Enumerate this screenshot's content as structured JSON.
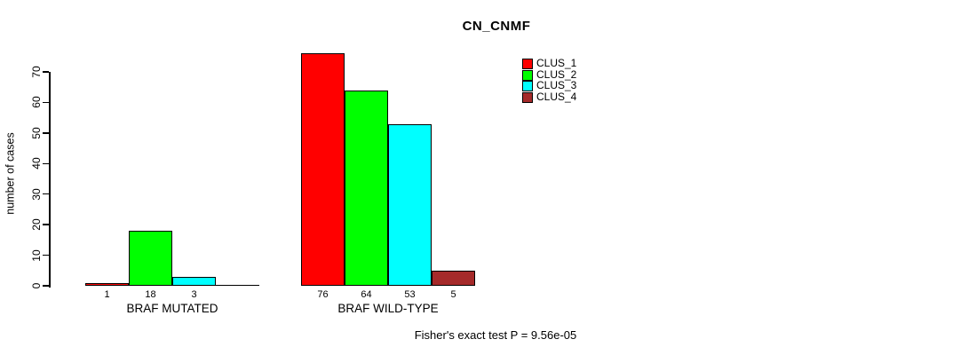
{
  "chart_data": {
    "type": "bar",
    "title": "CN_CNMF",
    "xlabel": "",
    "ylabel": "number of cases",
    "categories": [
      "BRAF MUTATED",
      "BRAF WILD-TYPE"
    ],
    "series": [
      {
        "name": "CLUS_1",
        "color": "#ff0000",
        "values": [
          1,
          76
        ]
      },
      {
        "name": "CLUS_2",
        "color": "#00ff00",
        "values": [
          18,
          64
        ]
      },
      {
        "name": "CLUS_3",
        "color": "#00ffff",
        "values": [
          3,
          53
        ]
      },
      {
        "name": "CLUS_4",
        "color": "#a52a2a",
        "values": [
          0,
          5
        ]
      }
    ],
    "bar_value_labels": [
      [
        "1",
        "18",
        "3",
        null
      ],
      [
        "76",
        "64",
        "53",
        "5"
      ]
    ],
    "yticks": [
      0,
      10,
      20,
      30,
      40,
      50,
      60,
      70
    ],
    "ylim": [
      0,
      70
    ],
    "grid": false,
    "legend": {
      "position": "top-right",
      "entries": [
        "CLUS_1",
        "CLUS_2",
        "CLUS_3",
        "CLUS_4"
      ]
    },
    "annotation": "Fisher's exact test P = 9.56e-05",
    "colors": {
      "axis": "#000000",
      "text": "#000000",
      "background": "#ffffff"
    }
  }
}
